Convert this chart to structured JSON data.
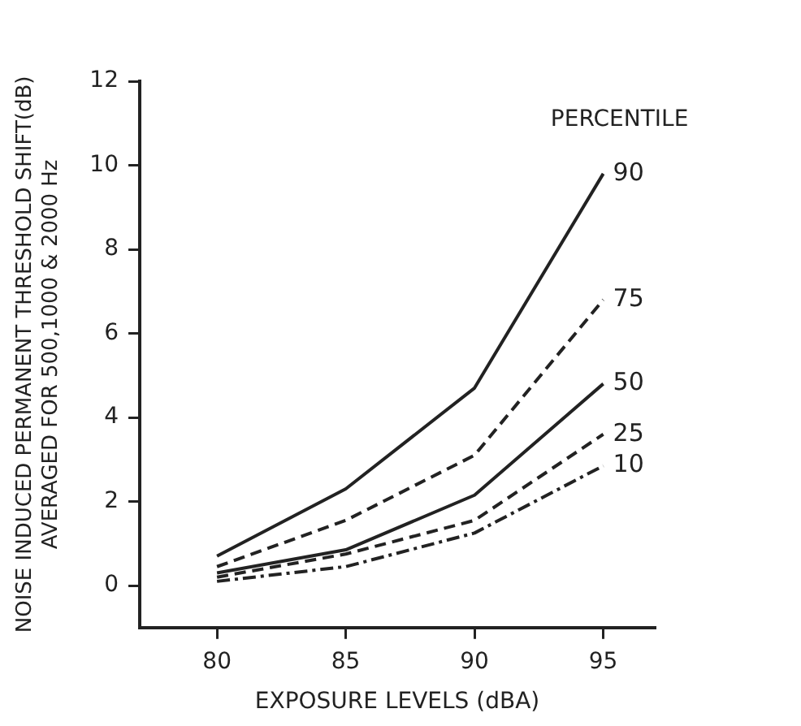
{
  "chart_data": {
    "type": "line",
    "xlabel": "EXPOSURE LEVELS (dBA)",
    "ylabel": "NOISE INDUCED PERMANENT THRESHOLD SHIFT(dB)\nAVERAGED FOR 500,1000 & 2000 Hz",
    "legend_title": "PERCENTILE",
    "x": [
      80,
      85,
      90,
      95
    ],
    "xlim": [
      77,
      97
    ],
    "xticks": [
      80,
      85,
      90,
      95
    ],
    "ylim": [
      -1,
      12
    ],
    "yticks": [
      0,
      2,
      4,
      6,
      8,
      10,
      12
    ],
    "grid": false,
    "legend": false,
    "marker": "none",
    "series": [
      {
        "name": "90",
        "color": "#222222",
        "line_style": "solid",
        "values": [
          0.7,
          2.3,
          4.7,
          9.8
        ]
      },
      {
        "name": "75",
        "color": "#222222",
        "line_style": "dashed",
        "values": [
          0.45,
          1.55,
          3.1,
          6.8
        ]
      },
      {
        "name": "50",
        "color": "#222222",
        "line_style": "solid",
        "values": [
          0.3,
          0.85,
          2.15,
          4.8
        ]
      },
      {
        "name": "25",
        "color": "#222222",
        "line_style": "dashed",
        "values": [
          0.2,
          0.75,
          1.55,
          3.6
        ]
      },
      {
        "name": "10",
        "color": "#222222",
        "line_style": "dotted",
        "values": [
          0.1,
          0.45,
          1.25,
          2.85
        ]
      }
    ]
  }
}
